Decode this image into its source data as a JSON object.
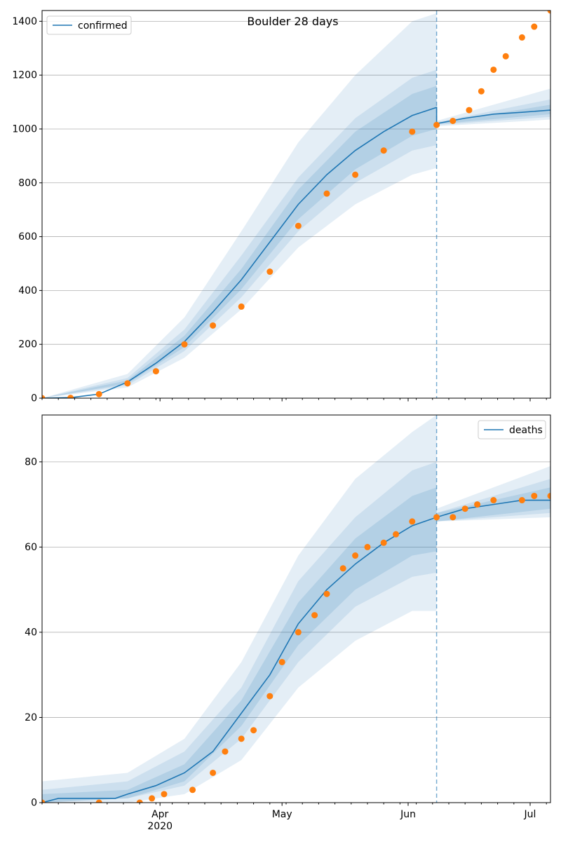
{
  "chart_data": [
    {
      "type": "line",
      "title": "Boulder 28 days",
      "xlabel": "",
      "ylabel": "",
      "ylim": [
        0,
        1440
      ],
      "yticks": [
        0,
        200,
        400,
        600,
        800,
        1000,
        1200,
        1400
      ],
      "grid": "y",
      "legend": {
        "position": "top-left",
        "entries": [
          "confirmed"
        ]
      },
      "forecast_start": "2020-06-08",
      "xlim": [
        "2020-03-03",
        "2020-07-06"
      ],
      "xtick_labels": [
        {
          "date": "2020-04-01",
          "label": "Apr",
          "sub": "2020"
        },
        {
          "date": "2020-05-01",
          "label": "May",
          "sub": ""
        },
        {
          "date": "2020-06-01",
          "label": "Jun",
          "sub": ""
        },
        {
          "date": "2020-07-01",
          "label": "Jul",
          "sub": ""
        }
      ],
      "colors": {
        "model": "#1f77b4",
        "observed": "#ff7f0e",
        "band": "#1f77b4"
      },
      "series": [
        {
          "name": "confirmed",
          "kind": "line",
          "points": [
            [
              "2020-03-03",
              0
            ],
            [
              "2020-03-10",
              2
            ],
            [
              "2020-03-17",
              15
            ],
            [
              "2020-03-24",
              60
            ],
            [
              "2020-03-31",
              130
            ],
            [
              "2020-04-07",
              210
            ],
            [
              "2020-04-14",
              320
            ],
            [
              "2020-04-21",
              440
            ],
            [
              "2020-04-28",
              580
            ],
            [
              "2020-05-05",
              720
            ],
            [
              "2020-05-12",
              830
            ],
            [
              "2020-05-19",
              920
            ],
            [
              "2020-05-26",
              990
            ],
            [
              "2020-06-02",
              1050
            ],
            [
              "2020-06-08",
              1080
            ],
            [
              "2020-06-08",
              1020
            ],
            [
              "2020-06-15",
              1040
            ],
            [
              "2020-06-22",
              1055
            ],
            [
              "2020-06-29",
              1062
            ],
            [
              "2020-07-06",
              1070
            ]
          ]
        },
        {
          "kind": "band_outer",
          "lower": [
            [
              "2020-03-03",
              0
            ],
            [
              "2020-03-24",
              40
            ],
            [
              "2020-04-07",
              150
            ],
            [
              "2020-04-21",
              330
            ],
            [
              "2020-05-05",
              560
            ],
            [
              "2020-05-19",
              720
            ],
            [
              "2020-06-02",
              830
            ],
            [
              "2020-06-08",
              855
            ],
            [
              "2020-06-08",
              1010
            ],
            [
              "2020-07-06",
              1035
            ]
          ],
          "upper": [
            [
              "2020-03-03",
              0
            ],
            [
              "2020-03-24",
              90
            ],
            [
              "2020-04-07",
              300
            ],
            [
              "2020-04-21",
              620
            ],
            [
              "2020-05-05",
              950
            ],
            [
              "2020-05-19",
              1200
            ],
            [
              "2020-06-02",
              1400
            ],
            [
              "2020-06-08",
              1430
            ],
            [
              "2020-06-08",
              1030
            ],
            [
              "2020-07-06",
              1150
            ]
          ]
        },
        {
          "kind": "band_mid",
          "lower": [
            [
              "2020-03-03",
              0
            ],
            [
              "2020-03-24",
              48
            ],
            [
              "2020-04-07",
              175
            ],
            [
              "2020-04-21",
              375
            ],
            [
              "2020-05-05",
              620
            ],
            [
              "2020-05-19",
              800
            ],
            [
              "2020-06-02",
              920
            ],
            [
              "2020-06-08",
              940
            ],
            [
              "2020-06-08",
              1015
            ],
            [
              "2020-07-06",
              1045
            ]
          ],
          "upper": [
            [
              "2020-03-03",
              0
            ],
            [
              "2020-03-24",
              75
            ],
            [
              "2020-04-07",
              255
            ],
            [
              "2020-04-21",
              530
            ],
            [
              "2020-05-05",
              820
            ],
            [
              "2020-05-19",
              1040
            ],
            [
              "2020-06-02",
              1190
            ],
            [
              "2020-06-08",
              1220
            ],
            [
              "2020-06-08",
              1025
            ],
            [
              "2020-07-06",
              1110
            ]
          ]
        },
        {
          "kind": "band_inner",
          "lower": [
            [
              "2020-03-03",
              0
            ],
            [
              "2020-03-24",
              54
            ],
            [
              "2020-04-07",
              190
            ],
            [
              "2020-04-21",
              405
            ],
            [
              "2020-05-05",
              665
            ],
            [
              "2020-05-19",
              850
            ],
            [
              "2020-06-02",
              975
            ],
            [
              "2020-06-08",
              1000
            ],
            [
              "2020-06-08",
              1018
            ],
            [
              "2020-07-06",
              1055
            ]
          ],
          "upper": [
            [
              "2020-03-03",
              0
            ],
            [
              "2020-03-24",
              66
            ],
            [
              "2020-04-07",
              232
            ],
            [
              "2020-04-21",
              480
            ],
            [
              "2020-05-05",
              775
            ],
            [
              "2020-05-19",
              990
            ],
            [
              "2020-06-02",
              1130
            ],
            [
              "2020-06-08",
              1160
            ],
            [
              "2020-06-08",
              1022
            ],
            [
              "2020-07-06",
              1090
            ]
          ]
        },
        {
          "kind": "observed",
          "points": [
            [
              "2020-03-03",
              0
            ],
            [
              "2020-03-10",
              1
            ],
            [
              "2020-03-17",
              15
            ],
            [
              "2020-03-24",
              55
            ],
            [
              "2020-03-31",
              100
            ],
            [
              "2020-04-07",
              200
            ],
            [
              "2020-04-14",
              270
            ],
            [
              "2020-04-21",
              340
            ],
            [
              "2020-04-28",
              470
            ],
            [
              "2020-05-05",
              640
            ],
            [
              "2020-05-12",
              760
            ],
            [
              "2020-05-19",
              830
            ],
            [
              "2020-05-26",
              920
            ],
            [
              "2020-06-02",
              990
            ],
            [
              "2020-06-08",
              1015
            ],
            [
              "2020-06-12",
              1030
            ],
            [
              "2020-06-16",
              1070
            ],
            [
              "2020-06-19",
              1140
            ],
            [
              "2020-06-22",
              1220
            ],
            [
              "2020-06-25",
              1270
            ],
            [
              "2020-06-29",
              1340
            ],
            [
              "2020-07-02",
              1380
            ],
            [
              "2020-07-06",
              1440
            ]
          ]
        }
      ]
    },
    {
      "type": "line",
      "title": "",
      "xlabel": "",
      "ylabel": "",
      "ylim": [
        0,
        91
      ],
      "yticks": [
        0,
        20,
        40,
        60,
        80
      ],
      "grid": "y",
      "legend": {
        "position": "top-right",
        "entries": [
          "deaths"
        ]
      },
      "forecast_start": "2020-06-08",
      "xlim": [
        "2020-03-03",
        "2020-07-06"
      ],
      "xtick_labels": [
        {
          "date": "2020-04-01",
          "label": "Apr",
          "sub": "2020"
        },
        {
          "date": "2020-05-01",
          "label": "May",
          "sub": ""
        },
        {
          "date": "2020-06-01",
          "label": "Jun",
          "sub": ""
        },
        {
          "date": "2020-07-01",
          "label": "Jul",
          "sub": ""
        }
      ],
      "colors": {
        "model": "#1f77b4",
        "observed": "#ff7f0e",
        "band": "#1f77b4"
      },
      "series": [
        {
          "name": "deaths",
          "kind": "line",
          "points": [
            [
              "2020-03-03",
              0
            ],
            [
              "2020-03-07",
              1
            ],
            [
              "2020-03-21",
              1
            ],
            [
              "2020-03-24",
              2
            ],
            [
              "2020-03-31",
              4
            ],
            [
              "2020-04-07",
              7
            ],
            [
              "2020-04-14",
              12
            ],
            [
              "2020-04-21",
              21
            ],
            [
              "2020-04-28",
              30
            ],
            [
              "2020-05-05",
              42
            ],
            [
              "2020-05-12",
              50
            ],
            [
              "2020-05-19",
              56
            ],
            [
              "2020-05-26",
              61
            ],
            [
              "2020-06-02",
              65
            ],
            [
              "2020-06-08",
              67
            ],
            [
              "2020-06-08",
              67
            ],
            [
              "2020-06-15",
              69
            ],
            [
              "2020-06-22",
              70
            ],
            [
              "2020-06-29",
              71
            ],
            [
              "2020-07-06",
              71
            ]
          ]
        },
        {
          "kind": "band_outer",
          "lower": [
            [
              "2020-03-03",
              0
            ],
            [
              "2020-03-24",
              0
            ],
            [
              "2020-04-07",
              2
            ],
            [
              "2020-04-21",
              10
            ],
            [
              "2020-05-05",
              27
            ],
            [
              "2020-05-19",
              38
            ],
            [
              "2020-06-02",
              45
            ],
            [
              "2020-06-08",
              45
            ],
            [
              "2020-06-08",
              66
            ],
            [
              "2020-07-06",
              67
            ]
          ],
          "upper": [
            [
              "2020-03-03",
              5
            ],
            [
              "2020-03-24",
              7
            ],
            [
              "2020-04-07",
              15
            ],
            [
              "2020-04-21",
              33
            ],
            [
              "2020-05-05",
              58
            ],
            [
              "2020-05-19",
              76
            ],
            [
              "2020-06-02",
              87
            ],
            [
              "2020-06-08",
              91
            ],
            [
              "2020-06-08",
              69
            ],
            [
              "2020-07-06",
              79
            ]
          ]
        },
        {
          "kind": "band_mid",
          "lower": [
            [
              "2020-03-03",
              0
            ],
            [
              "2020-03-24",
              1
            ],
            [
              "2020-04-07",
              4
            ],
            [
              "2020-04-21",
              15
            ],
            [
              "2020-05-05",
              33
            ],
            [
              "2020-05-19",
              46
            ],
            [
              "2020-06-02",
              53
            ],
            [
              "2020-06-08",
              54
            ],
            [
              "2020-06-08",
              66
            ],
            [
              "2020-07-06",
              68
            ]
          ],
          "upper": [
            [
              "2020-03-03",
              3
            ],
            [
              "2020-03-24",
              5
            ],
            [
              "2020-04-07",
              12
            ],
            [
              "2020-04-21",
              27
            ],
            [
              "2020-05-05",
              52
            ],
            [
              "2020-05-19",
              67
            ],
            [
              "2020-06-02",
              78
            ],
            [
              "2020-06-08",
              80
            ],
            [
              "2020-06-08",
              68
            ],
            [
              "2020-07-06",
              76
            ]
          ]
        },
        {
          "kind": "band_inner",
          "lower": [
            [
              "2020-03-03",
              0
            ],
            [
              "2020-03-24",
              1
            ],
            [
              "2020-04-07",
              5
            ],
            [
              "2020-04-21",
              18
            ],
            [
              "2020-05-05",
              37
            ],
            [
              "2020-05-19",
              50
            ],
            [
              "2020-06-02",
              58
            ],
            [
              "2020-06-08",
              59
            ],
            [
              "2020-06-08",
              66
            ],
            [
              "2020-07-06",
              69
            ]
          ],
          "upper": [
            [
              "2020-03-03",
              2
            ],
            [
              "2020-03-24",
              3
            ],
            [
              "2020-04-07",
              9
            ],
            [
              "2020-04-21",
              24
            ],
            [
              "2020-05-05",
              47
            ],
            [
              "2020-05-19",
              62
            ],
            [
              "2020-06-02",
              72
            ],
            [
              "2020-06-08",
              74
            ],
            [
              "2020-06-08",
              68
            ],
            [
              "2020-07-06",
              74
            ]
          ]
        },
        {
          "kind": "observed",
          "points": [
            [
              "2020-03-03",
              0
            ],
            [
              "2020-03-17",
              0
            ],
            [
              "2020-03-27",
              0
            ],
            [
              "2020-03-30",
              1
            ],
            [
              "2020-04-02",
              2
            ],
            [
              "2020-04-09",
              3
            ],
            [
              "2020-04-14",
              7
            ],
            [
              "2020-04-17",
              12
            ],
            [
              "2020-04-21",
              15
            ],
            [
              "2020-04-24",
              17
            ],
            [
              "2020-04-28",
              25
            ],
            [
              "2020-05-01",
              33
            ],
            [
              "2020-05-05",
              40
            ],
            [
              "2020-05-09",
              44
            ],
            [
              "2020-05-12",
              49
            ],
            [
              "2020-05-16",
              55
            ],
            [
              "2020-05-19",
              58
            ],
            [
              "2020-05-22",
              60
            ],
            [
              "2020-05-26",
              61
            ],
            [
              "2020-05-29",
              63
            ],
            [
              "2020-06-02",
              66
            ],
            [
              "2020-06-08",
              67
            ],
            [
              "2020-06-12",
              67
            ],
            [
              "2020-06-15",
              69
            ],
            [
              "2020-06-18",
              70
            ],
            [
              "2020-06-22",
              71
            ],
            [
              "2020-06-29",
              71
            ],
            [
              "2020-07-02",
              72
            ],
            [
              "2020-07-06",
              72
            ]
          ]
        }
      ]
    }
  ]
}
